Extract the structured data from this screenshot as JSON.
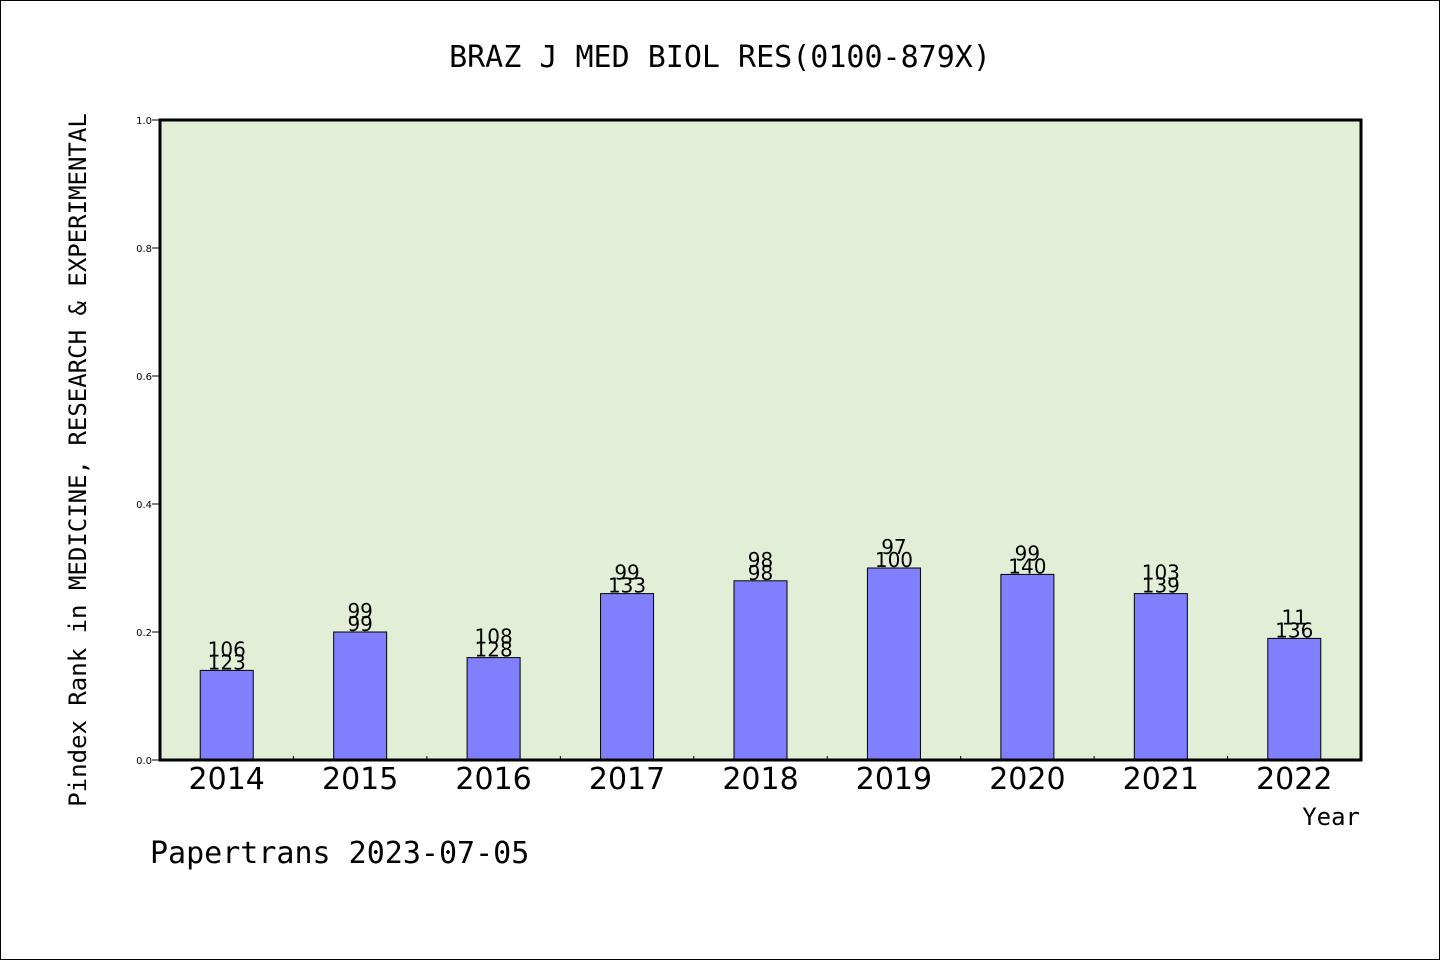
{
  "chart_data": {
    "type": "bar",
    "title": "BRAZ J MED BIOL RES(0100-879X)",
    "xlabel": "Year",
    "ylabel": "Pindex Rank in MEDICINE, RESEARCH & EXPERIMENTAL",
    "footer": "Papertrans 2023-07-05",
    "ylim": [
      0,
      1.0
    ],
    "yticks": [
      "0.0",
      "0.2",
      "0.4",
      "0.6",
      "0.8",
      "1.0"
    ],
    "categories": [
      "2014",
      "2015",
      "2016",
      "2017",
      "2018",
      "2019",
      "2020",
      "2021",
      "2022"
    ],
    "values": [
      0.14,
      0.2,
      0.16,
      0.26,
      0.28,
      0.3,
      0.29,
      0.26,
      0.19
    ],
    "labels_top": [
      "106",
      "99",
      "108",
      "99",
      "98",
      "97",
      "99",
      "103",
      "11"
    ],
    "labels_bottom": [
      "123",
      "99",
      "128",
      "133",
      "98",
      "100",
      "140",
      "139",
      "136"
    ],
    "colors": {
      "plot_background": "#e2efd6",
      "bar_fill": "#8080ff",
      "bar_stroke": "#000000"
    },
    "grid": false
  }
}
